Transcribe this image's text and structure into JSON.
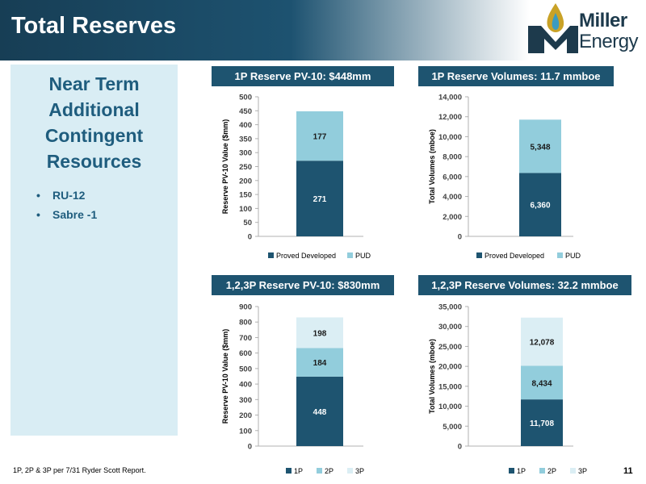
{
  "slide": {
    "title": "Total Reserves",
    "footnote": "1P, 2P & 3P per 7/31 Ryder Scott Report.",
    "page_number": "11"
  },
  "logo": {
    "line1": "Miller",
    "line2": "Energy",
    "colors": {
      "flame_outer": "#c9a227",
      "flame_inner": "#3b9bbf",
      "mark": "#1d3a4c"
    }
  },
  "sidebar": {
    "title_lines": [
      "Near Term",
      "Additional",
      "Contingent",
      "Resources"
    ],
    "items": [
      "RU-12",
      "Sabre -1"
    ]
  },
  "colors": {
    "dark": "#1e5470",
    "mid": "#92cddc",
    "light": "#dbeef4",
    "title_bg": "#1e5470"
  },
  "chart_data": [
    {
      "type": "bar",
      "title": "1P Reserve PV-10: $448mm",
      "ylabel": "Reserve PV-10 Value ($mm)",
      "ylim": [
        0,
        500
      ],
      "yticks": [
        "0",
        "50",
        "100",
        "150",
        "200",
        "250",
        "300",
        "350",
        "400",
        "450",
        "500"
      ],
      "series": [
        {
          "name": "Proved Developed",
          "values": [
            271
          ],
          "label": "271",
          "color": "#1e5470"
        },
        {
          "name": "PUD",
          "values": [
            177
          ],
          "label": "177",
          "color": "#92cddc"
        }
      ],
      "stacked": true,
      "legend": "bottom"
    },
    {
      "type": "bar",
      "title": "1P Reserve Volumes: 11.7 mmboe",
      "ylabel": "Total Volumes (mboe)",
      "ylim": [
        0,
        14000
      ],
      "yticks": [
        "0",
        "2,000",
        "4,000",
        "6,000",
        "8,000",
        "10,000",
        "12,000",
        "14,000"
      ],
      "series": [
        {
          "name": "Proved Developed",
          "values": [
            6360
          ],
          "label": "6,360",
          "color": "#1e5470"
        },
        {
          "name": "PUD",
          "values": [
            5348
          ],
          "label": "5,348",
          "color": "#92cddc"
        }
      ],
      "stacked": true,
      "legend": "bottom"
    },
    {
      "type": "bar",
      "title": "1,2,3P Reserve PV-10: $830mm",
      "ylabel": "Reserve PV-10 Value ($mm)",
      "ylim": [
        0,
        900
      ],
      "yticks": [
        "0",
        "100",
        "200",
        "300",
        "400",
        "500",
        "600",
        "700",
        "800",
        "900"
      ],
      "series": [
        {
          "name": "1P",
          "values": [
            448
          ],
          "label": "448",
          "color": "#1e5470"
        },
        {
          "name": "2P",
          "values": [
            184
          ],
          "label": "184",
          "color": "#92cddc"
        },
        {
          "name": "3P",
          "values": [
            198
          ],
          "label": "198",
          "color": "#dbeef4"
        }
      ],
      "stacked": true,
      "legend": "bottom"
    },
    {
      "type": "bar",
      "title": "1,2,3P Reserve Volumes: 32.2 mmboe",
      "ylabel": "Total Volumes (mboe)",
      "ylim": [
        0,
        35000
      ],
      "yticks": [
        "0",
        "5,000",
        "10,000",
        "15,000",
        "20,000",
        "25,000",
        "30,000",
        "35,000"
      ],
      "series": [
        {
          "name": "1P",
          "values": [
            11708
          ],
          "label": "11,708",
          "color": "#1e5470"
        },
        {
          "name": "2P",
          "values": [
            8434
          ],
          "label": "8,434",
          "color": "#92cddc"
        },
        {
          "name": "3P",
          "values": [
            12078
          ],
          "label": "12,078",
          "color": "#dbeef4"
        }
      ],
      "stacked": true,
      "legend": "bottom"
    }
  ]
}
